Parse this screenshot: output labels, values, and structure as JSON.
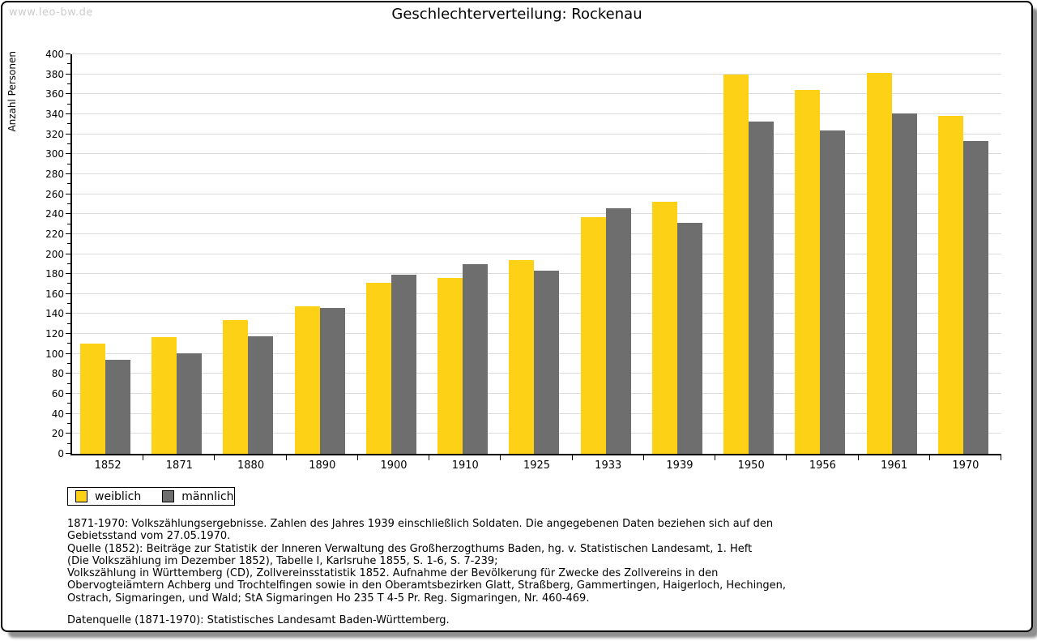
{
  "watermark": "www.leo-bw.de",
  "header": {
    "title": "Geschlechterverteilung: Rockenau"
  },
  "legend": {
    "items": [
      {
        "label": "weiblich",
        "color": "#FCD116"
      },
      {
        "label": "männlich",
        "color": "#6E6E6E"
      }
    ]
  },
  "chart_data": {
    "type": "bar",
    "title": "Geschlechterverteilung: Rockenau",
    "xlabel": "",
    "ylabel": "Anzahl Personen",
    "ylim": [
      0,
      400
    ],
    "y_major_step": 20,
    "y_minor_step": 10,
    "grid": true,
    "legend_position": "bottom-left",
    "categories": [
      "1852",
      "1871",
      "1880",
      "1890",
      "1900",
      "1910",
      "1925",
      "1933",
      "1939",
      "1950",
      "1956",
      "1961",
      "1970"
    ],
    "series": [
      {
        "name": "weiblich",
        "color": "#FCD116",
        "values": [
          110,
          117,
          134,
          148,
          171,
          176,
          194,
          237,
          252,
          380,
          364,
          381,
          338
        ]
      },
      {
        "name": "männlich",
        "color": "#6E6E6E",
        "values": [
          94,
          101,
          118,
          146,
          179,
          190,
          183,
          246,
          231,
          333,
          324,
          341,
          313
        ]
      }
    ]
  },
  "footnotes": {
    "lines": [
      "1871-1970: Volkszählungsergebnisse. Zahlen des Jahres 1939 einschließlich Soldaten. Die angegebenen Daten beziehen sich auf den",
      "Gebietsstand vom 27.05.1970.",
      "Quelle (1852): Beiträge zur Statistik der Inneren Verwaltung des Großherzogthums Baden, hg. v. Statistischen Landesamt, 1. Heft",
      "(Die Volkszählung im Dezember 1852), Tabelle I, Karlsruhe 1855, S. 1-6, S. 7-239;",
      "Volkszählung in Württemberg (CD), Zollvereinsstatistik 1852. Aufnahme der Bevölkerung für Zwecke des Zollvereins in den",
      "Obervogteiämtern Achberg und Trochtelfingen sowie in den Oberamtsbezirken Glatt, Straßberg, Gammertingen, Haigerloch, Hechingen,",
      "Ostrach, Sigmaringen, und Wald; StA Sigmaringen Ho 235 T 4-5 Pr. Reg. Sigmaringen, Nr. 460-469."
    ]
  },
  "datasource": "Datenquelle (1871-1970): Statistisches Landesamt Baden-Württemberg.",
  "colors": {
    "grid": "#DCDCDC",
    "axis": "#000000",
    "watermark": "#CCCCCC",
    "shadow": "#8F8F8F"
  }
}
